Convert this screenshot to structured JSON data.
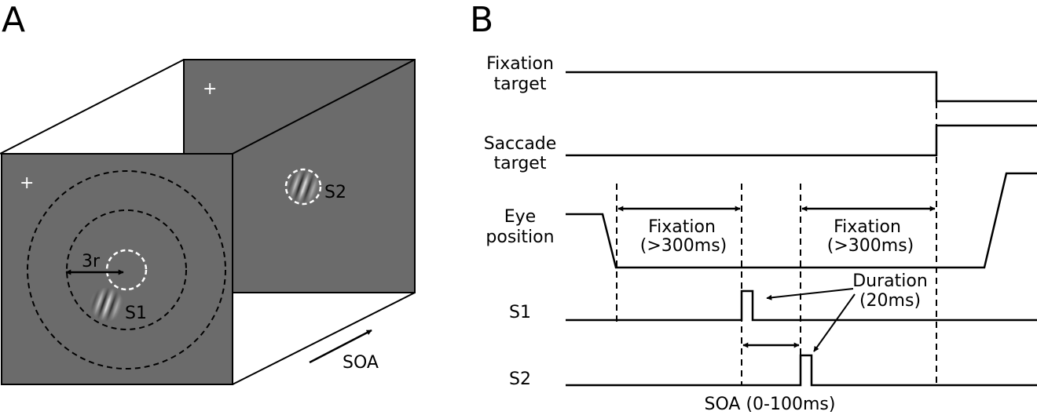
{
  "panel_a": {
    "letter": "A",
    "front_fixation": "+",
    "back_fixation": "+",
    "radius_label": "3r",
    "s1_label": "S1",
    "s2_label": "S2",
    "soa_label": "SOA",
    "screen_color": "#6b6b6b"
  },
  "panel_b": {
    "letter": "B",
    "fixation_target_line1": "Fixation",
    "fixation_target_line2": "target",
    "saccade_target_line1": "Saccade",
    "saccade_target_line2": "target",
    "eye_position_line1": "Eye",
    "eye_position_line2": "position",
    "s1": "S1",
    "s2": "S2",
    "fixation1_line1": "Fixation",
    "fixation1_line2": "(>300ms)",
    "fixation2_line1": "Fixation",
    "fixation2_line2": "(>300ms)",
    "duration_line1": "Duration",
    "duration_line2": "(20ms)",
    "soa_range": "SOA (0-100ms)"
  }
}
